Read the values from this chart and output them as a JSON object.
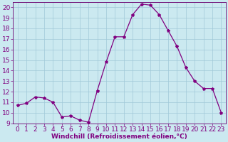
{
  "x": [
    0,
    1,
    2,
    3,
    4,
    5,
    6,
    7,
    8,
    9,
    10,
    11,
    12,
    13,
    14,
    15,
    16,
    17,
    18,
    19,
    20,
    21,
    22,
    23
  ],
  "y": [
    10.7,
    10.9,
    11.5,
    11.4,
    11.0,
    9.6,
    9.7,
    9.3,
    9.1,
    12.1,
    14.8,
    17.2,
    17.2,
    19.3,
    20.3,
    20.2,
    19.3,
    17.8,
    16.3,
    14.3,
    13.0,
    12.3,
    12.3,
    10.0
  ],
  "line_color": "#800080",
  "marker": "*",
  "marker_size": 3,
  "xlabel": "Windchill (Refroidissement éolien,°C)",
  "xlim_min": -0.5,
  "xlim_max": 23.5,
  "ylim_min": 9,
  "ylim_max": 20.5,
  "yticks": [
    9,
    10,
    11,
    12,
    13,
    14,
    15,
    16,
    17,
    18,
    19,
    20
  ],
  "xticks": [
    0,
    1,
    2,
    3,
    4,
    5,
    6,
    7,
    8,
    9,
    10,
    11,
    12,
    13,
    14,
    15,
    16,
    17,
    18,
    19,
    20,
    21,
    22,
    23
  ],
  "bg_color": "#cbe9f0",
  "grid_color": "#a0c8d8",
  "line_border_color": "#6a0070",
  "label_color": "#800080",
  "tick_fontsize": 6.5,
  "xlabel_fontsize": 6.5
}
